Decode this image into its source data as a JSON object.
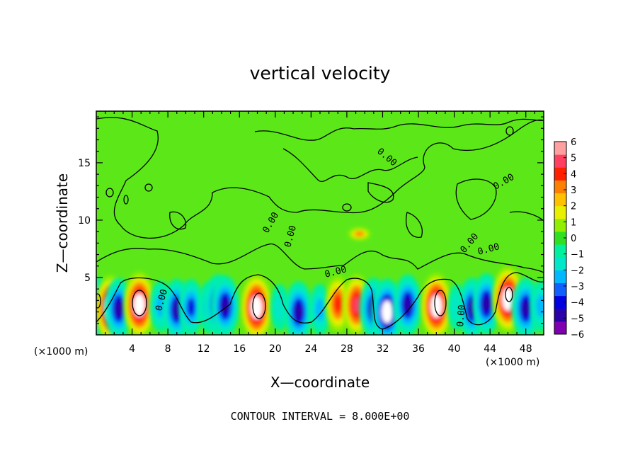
{
  "chart_data": {
    "type": "heatmap",
    "title": "vertical velocity",
    "xlabel": "X—coordinate",
    "ylabel": "Z—coordinate",
    "x_unit_label": "(×1000 m)",
    "y_unit_label": "(×1000 m)",
    "xlim": [
      0,
      50
    ],
    "ylim": [
      0,
      19.5
    ],
    "x_ticks": [
      4,
      8,
      12,
      16,
      20,
      24,
      28,
      32,
      36,
      40,
      44,
      48
    ],
    "y_ticks": [
      5,
      10,
      15
    ],
    "grid": false,
    "colorbar": {
      "placement": "right",
      "min": -6,
      "max": 6,
      "ticks": [
        6,
        5,
        4,
        3,
        2,
        1,
        0,
        -1,
        -2,
        -3,
        -4,
        -5,
        -6
      ],
      "tick_labels": [
        "6",
        "5",
        "4",
        "3",
        "2",
        "1",
        "0",
        "−1",
        "−2",
        "−3",
        "−4",
        "−5",
        "−6"
      ],
      "colors": [
        "#7f00b0",
        "#2a00a8",
        "#0000e0",
        "#1060ff",
        "#00b8ff",
        "#00e8c8",
        "#00f0a0",
        "#30e020",
        "#90ee00",
        "#e8f000",
        "#ffc000",
        "#ff8000",
        "#ff2000",
        "#ff4060",
        "#ffa0a0"
      ]
    },
    "contour_interval_text": "CONTOUR INTERVAL = 8.000E+00",
    "contour_labels": [
      "0.00",
      "0.00",
      "0.00",
      "0.00",
      "0.00",
      "0.00",
      "0.00",
      "0.00",
      "0.00"
    ],
    "background_value": 0,
    "features": [
      {
        "x": 0.3,
        "z": 2.3,
        "value": -5
      },
      {
        "x": 1.6,
        "z": 2.3,
        "value": 6
      },
      {
        "x": 2.5,
        "z": 2.3,
        "value": -5
      },
      {
        "x": 4.8,
        "z": 2.6,
        "value": 6
      },
      {
        "x": 7.2,
        "z": 2.5,
        "value": -3
      },
      {
        "x": 9.0,
        "z": 2.2,
        "value": -5
      },
      {
        "x": 10.6,
        "z": 2.4,
        "value": -4
      },
      {
        "x": 12.6,
        "z": 2.4,
        "value": -3
      },
      {
        "x": 13.6,
        "z": 2.6,
        "value": -5
      },
      {
        "x": 14.4,
        "z": 2.5,
        "value": -5
      },
      {
        "x": 17.9,
        "z": 2.4,
        "value": 6
      },
      {
        "x": 20.5,
        "z": 2.4,
        "value": -2
      },
      {
        "x": 22.6,
        "z": 2.0,
        "value": -5
      },
      {
        "x": 25.0,
        "z": 2.2,
        "value": -3
      },
      {
        "x": 27.0,
        "z": 2.7,
        "value": 4
      },
      {
        "x": 29.1,
        "z": 2.6,
        "value": 5
      },
      {
        "x": 29.4,
        "z": 8.8,
        "value": 3
      },
      {
        "x": 31.0,
        "z": 2.3,
        "value": -5
      },
      {
        "x": 32.5,
        "z": 2.0,
        "value": -6
      },
      {
        "x": 34.8,
        "z": 2.6,
        "value": -5
      },
      {
        "x": 38.0,
        "z": 2.5,
        "value": 6
      },
      {
        "x": 40.3,
        "z": 2.4,
        "value": -2
      },
      {
        "x": 42.0,
        "z": 2.3,
        "value": -5
      },
      {
        "x": 43.6,
        "z": 2.7,
        "value": -5
      },
      {
        "x": 46.0,
        "z": 3.1,
        "value": 6
      },
      {
        "x": 48.0,
        "z": 2.3,
        "value": -5
      },
      {
        "x": 49.7,
        "z": 2.5,
        "value": -3
      }
    ]
  }
}
